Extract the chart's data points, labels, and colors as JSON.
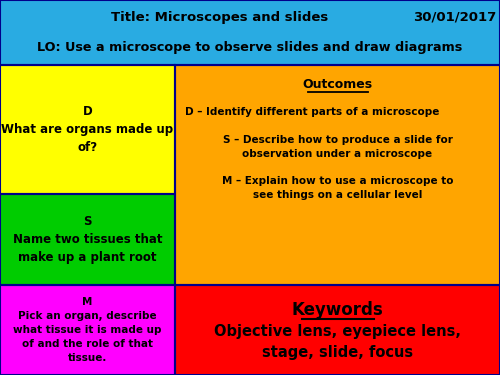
{
  "title_line1": "Title: Microscopes and slides",
  "title_date": "30/01/2017",
  "title_lo": "LO: Use a microscope to observe slides and draw diagrams",
  "header_bg": "#29ABE2",
  "header_text_color": "#000000",
  "cell_top_left_bg": "#FFFF00",
  "cell_top_left_text": "D\nWhat are organs made up\nof?",
  "cell_mid_left_bg": "#00CC00",
  "cell_mid_left_text": "S\nName two tissues that\nmake up a plant root",
  "cell_bot_left_bg": "#FF00FF",
  "cell_bot_left_text": "M\nPick an organ, describe\nwhat tissue it is made up\nof and the role of that\ntissue.",
  "cell_top_right_bg": "#FFA500",
  "cell_top_right_title": "Outcomes",
  "cell_top_right_d": "D – Identify different parts of a microscope",
  "cell_top_right_s": "S – Describe how to produce a slide for\nobservation under a microscope",
  "cell_top_right_m": "M – Explain how to use a microscope to\nsee things on a cellular level",
  "cell_bot_right_bg": "#FF0000",
  "cell_bot_right_title": "Keywords",
  "cell_bot_right_text": "Objective lens, eyepiece lens,\nstage, slide, focus",
  "border_color": "#00008B",
  "text_color": "#000000"
}
